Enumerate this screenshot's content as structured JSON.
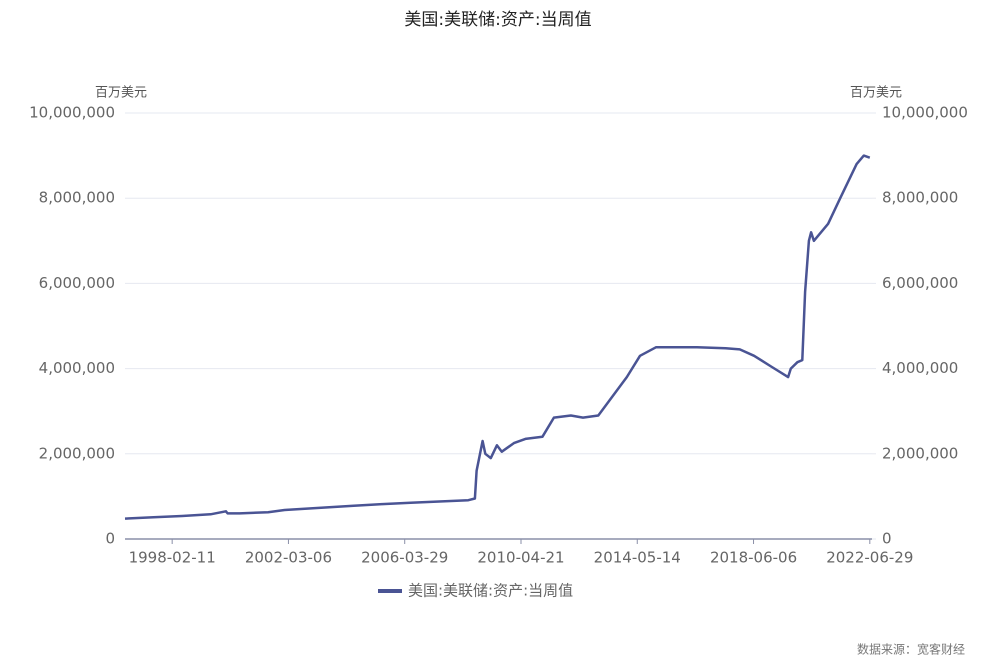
{
  "chart_data": {
    "type": "line",
    "title": "美国:美联储:资产:当周值",
    "ylabel": "百万美元",
    "y2label": "百万美元",
    "source": "数据来源：宽客财经",
    "x": [
      "1996-06-19",
      "1997-06-18",
      "1998-06-17",
      "1999-06-16",
      "1999-12-29",
      "2000-01-19",
      "2000-06-21",
      "2001-06-20",
      "2002-01-16",
      "2002-06-19",
      "2003-06-18",
      "2004-06-16",
      "2005-06-15",
      "2006-06-14",
      "2007-06-13",
      "2008-06-18",
      "2008-09-10",
      "2008-10-01",
      "2008-12-17",
      "2009-01-21",
      "2009-04-01",
      "2009-06-17",
      "2009-08-19",
      "2010-01-20",
      "2010-06-16",
      "2011-01-19",
      "2011-06-15",
      "2012-01-18",
      "2012-06-20",
      "2013-01-02",
      "2014-01-01",
      "2014-06-18",
      "2015-01-07",
      "2016-06-15",
      "2017-06-14",
      "2017-12-13",
      "2018-06-13",
      "2019-01-16",
      "2019-08-21",
      "2019-09-25",
      "2019-12-18",
      "2020-02-19",
      "2020-03-25",
      "2020-05-13",
      "2020-06-10",
      "2020-07-15",
      "2021-01-13",
      "2021-06-16",
      "2022-01-12",
      "2022-04-13",
      "2022-06-29"
    ],
    "series": [
      {
        "name": "美国:美联储:资产:当周值",
        "color": "#4a5494",
        "values": [
          480000,
          510000,
          540000,
          580000,
          650000,
          600000,
          600000,
          630000,
          680000,
          700000,
          740000,
          780000,
          820000,
          850000,
          880000,
          910000,
          950000,
          1600000,
          2300000,
          2000000,
          1900000,
          2200000,
          2050000,
          2250000,
          2350000,
          2400000,
          2850000,
          2900000,
          2850000,
          2900000,
          3800000,
          4300000,
          4500000,
          4500000,
          4480000,
          4450000,
          4300000,
          4050000,
          3800000,
          4000000,
          4150000,
          4200000,
          5800000,
          7000000,
          7200000,
          7000000,
          7400000,
          8000000,
          8800000,
          9000000,
          8950000
        ]
      }
    ],
    "xlim": [
      "1996-06-19",
      "2022-07-27"
    ],
    "xticks": [
      "1998-02-11",
      "2002-03-06",
      "2006-03-29",
      "2010-04-21",
      "2014-05-14",
      "2018-06-06",
      "2022-06-29"
    ],
    "ylim": [
      0,
      10000000
    ],
    "yticks": [
      0,
      {
        "value": 2000000,
        "label": "2,000,000"
      },
      {
        "value": 4000000,
        "label": "4,000,000"
      },
      {
        "value": 6000000,
        "label": "6,000,000"
      },
      {
        "value": 8000000,
        "label": "8,000,000"
      },
      {
        "value": 10000000,
        "label": "10,000,000"
      }
    ],
    "y2lim": [
      0,
      10000000
    ],
    "y2ticks": [
      0,
      {
        "value": 2000000,
        "label": "2,000,000"
      },
      {
        "value": 4000000,
        "label": "4,000,000"
      },
      {
        "value": 6000000,
        "label": "6,000,000"
      },
      {
        "value": 8000000,
        "label": "8,000,000"
      },
      {
        "value": 10000000,
        "label": "10,000,000"
      }
    ],
    "grid": true
  }
}
